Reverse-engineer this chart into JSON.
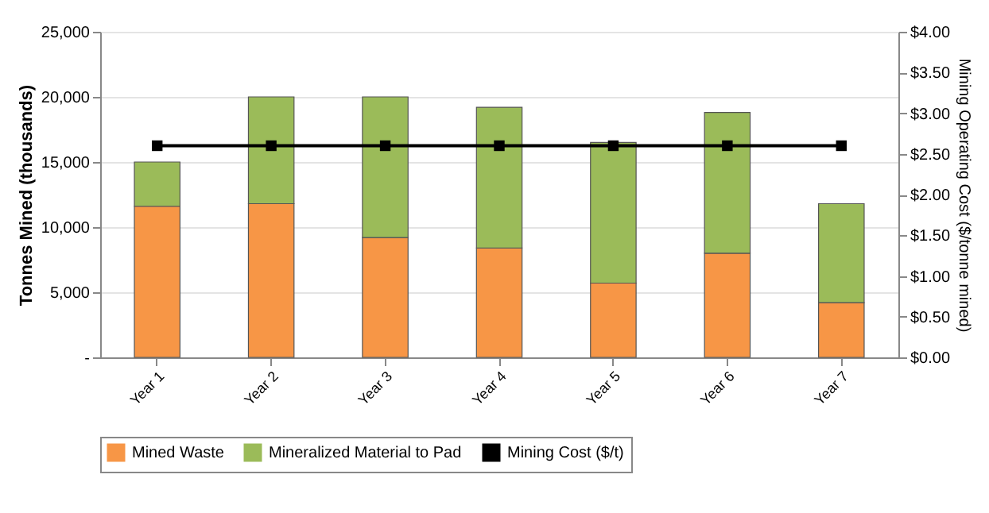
{
  "chart_data": {
    "type": "bar",
    "stacked": true,
    "categories": [
      "Year 1",
      "Year 2",
      "Year 3",
      "Year 4",
      "Year 5",
      "Year 6",
      "Year 7"
    ],
    "series": [
      {
        "name": "Mined Waste",
        "color": "#f79646",
        "values": [
          11600,
          11800,
          9200,
          8400,
          5700,
          8000,
          4200
        ]
      },
      {
        "name": "Mineralized Material to Pad",
        "color": "#9bbb59",
        "values": [
          3400,
          8200,
          10800,
          10800,
          10800,
          10800,
          7600
        ]
      },
      {
        "name": "Mining Cost ($/t)",
        "type": "line",
        "axis": "y2",
        "marker": "square",
        "color": "#000000",
        "values": [
          2.6,
          2.6,
          2.6,
          2.6,
          2.6,
          2.6,
          2.6
        ]
      }
    ],
    "ylabel": "Tonnes Mined (thousands)",
    "y2label": "Mining Operating Cost ($/tonne mined)",
    "ylim": [
      0,
      25000
    ],
    "yticks": [
      {
        "value": 0,
        "label": "-"
      },
      {
        "value": 5000,
        "label": "5,000"
      },
      {
        "value": 10000,
        "label": "10,000"
      },
      {
        "value": 15000,
        "label": "15,000"
      },
      {
        "value": 20000,
        "label": "20,000"
      },
      {
        "value": 25000,
        "label": "25,000"
      }
    ],
    "y2lim": [
      0,
      4
    ],
    "y2ticks": [
      {
        "value": 0,
        "label": "$0.00"
      },
      {
        "value": 0.5,
        "label": "$0.50"
      },
      {
        "value": 1,
        "label": "$1.00"
      },
      {
        "value": 1.5,
        "label": "$1.50"
      },
      {
        "value": 2,
        "label": "$2.00"
      },
      {
        "value": 2.5,
        "label": "$2.50"
      },
      {
        "value": 3,
        "label": "$3.00"
      },
      {
        "value": 3.5,
        "label": "$3.50"
      },
      {
        "value": 4,
        "label": "$4.00"
      }
    ],
    "grid": "y",
    "legend": "bottom"
  }
}
